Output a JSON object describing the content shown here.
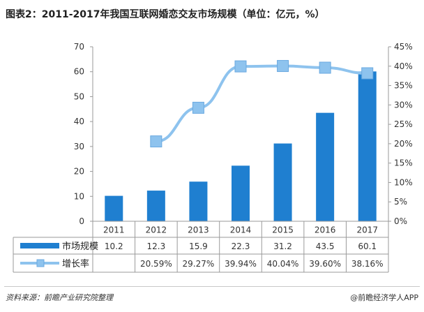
{
  "title": "图表2：2011-2017年我国互联网婚恋交友市场规模（单位：亿元，%）",
  "source": "资料来源：前瞻产业研究院整理",
  "brand": "@前瞻经济学人APP",
  "colors": {
    "bar": "#1f7fd0",
    "line": "#8ec3ee",
    "marker": "#8ec3ee"
  },
  "chart_data": {
    "type": "bar",
    "categories": [
      "2011",
      "2012",
      "2013",
      "2014",
      "2015",
      "2016",
      "2017"
    ],
    "series": [
      {
        "name": "市场规模",
        "type": "bar",
        "axis": "left",
        "values": [
          10.2,
          12.3,
          15.9,
          22.3,
          31.2,
          43.5,
          60.1
        ],
        "labels": [
          "10.2",
          "12.3",
          "15.9",
          "22.3",
          "31.2",
          "43.5",
          "60.1"
        ]
      },
      {
        "name": "增长率",
        "type": "line",
        "axis": "right",
        "values": [
          null,
          20.59,
          29.27,
          39.94,
          40.04,
          39.6,
          38.16
        ],
        "labels": [
          "",
          "20.59%",
          "29.27%",
          "39.94%",
          "40.04%",
          "39.60%",
          "38.16%"
        ]
      }
    ],
    "ylim_left": [
      0,
      70
    ],
    "yticks_left": [
      "0",
      "10",
      "20",
      "30",
      "40",
      "50",
      "60",
      "70"
    ],
    "ylim_right": [
      0,
      45
    ],
    "yticks_right": [
      "0%",
      "5%",
      "10%",
      "15%",
      "20%",
      "25%",
      "30%",
      "35%",
      "40%",
      "45%"
    ],
    "grid": false,
    "legend": "data-table"
  }
}
